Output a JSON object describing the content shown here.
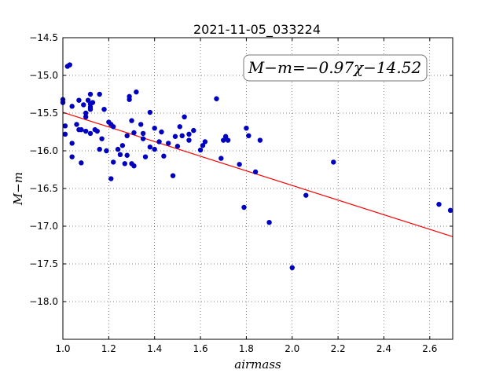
{
  "chart_data": {
    "type": "scatter",
    "title": "2021-11-05_033224",
    "xlabel": "airmass",
    "ylabel": "M−m",
    "xlim": [
      1.0,
      2.7
    ],
    "ylim": [
      -18.5,
      -14.5
    ],
    "y_inverted": true,
    "grid": true,
    "x_ticks": [
      "1.0",
      "1.2",
      "1.4",
      "1.6",
      "1.8",
      "2.0",
      "2.2",
      "2.4",
      "2.6"
    ],
    "y_ticks": [
      "−14.5",
      "−15.0",
      "−15.5",
      "−16.0",
      "−16.5",
      "−17.0",
      "−17.5",
      "−18.0"
    ],
    "annotation": "M−m=−0.97χ−14.52",
    "fit": {
      "slope": -0.97,
      "intercept": -14.52,
      "color": "#ff0000"
    },
    "point_color": "#0000bf",
    "points": [
      [
        1.0,
        -15.32
      ],
      [
        1.0,
        -15.36
      ],
      [
        1.01,
        -15.78
      ],
      [
        1.01,
        -15.67
      ],
      [
        1.02,
        -14.88
      ],
      [
        1.03,
        -14.86
      ],
      [
        1.04,
        -15.41
      ],
      [
        1.04,
        -15.9
      ],
      [
        1.04,
        -16.08
      ],
      [
        1.06,
        -15.65
      ],
      [
        1.07,
        -15.72
      ],
      [
        1.07,
        -15.33
      ],
      [
        1.08,
        -15.72
      ],
      [
        1.08,
        -16.16
      ],
      [
        1.09,
        -15.39
      ],
      [
        1.1,
        -15.5
      ],
      [
        1.1,
        -15.55
      ],
      [
        1.1,
        -15.74
      ],
      [
        1.11,
        -15.33
      ],
      [
        1.12,
        -15.38
      ],
      [
        1.12,
        -15.42
      ],
      [
        1.12,
        -15.45
      ],
      [
        1.12,
        -15.25
      ],
      [
        1.12,
        -15.77
      ],
      [
        1.13,
        -15.36
      ],
      [
        1.14,
        -15.72
      ],
      [
        1.15,
        -15.74
      ],
      [
        1.16,
        -15.98
      ],
      [
        1.16,
        -15.25
      ],
      [
        1.17,
        -15.84
      ],
      [
        1.18,
        -15.45
      ],
      [
        1.19,
        -16.0
      ],
      [
        1.2,
        -15.62
      ],
      [
        1.21,
        -15.65
      ],
      [
        1.21,
        -16.37
      ],
      [
        1.22,
        -16.15
      ],
      [
        1.22,
        -15.68
      ],
      [
        1.24,
        -15.98
      ],
      [
        1.25,
        -16.05
      ],
      [
        1.26,
        -15.93
      ],
      [
        1.27,
        -16.17
      ],
      [
        1.28,
        -16.06
      ],
      [
        1.28,
        -15.8
      ],
      [
        1.29,
        -15.32
      ],
      [
        1.29,
        -15.28
      ],
      [
        1.3,
        -16.17
      ],
      [
        1.3,
        -15.6
      ],
      [
        1.31,
        -15.76
      ],
      [
        1.31,
        -16.2
      ],
      [
        1.32,
        -15.22
      ],
      [
        1.34,
        -15.65
      ],
      [
        1.35,
        -15.84
      ],
      [
        1.35,
        -15.77
      ],
      [
        1.36,
        -16.08
      ],
      [
        1.38,
        -15.49
      ],
      [
        1.38,
        -15.95
      ],
      [
        1.4,
        -15.7
      ],
      [
        1.4,
        -15.98
      ],
      [
        1.42,
        -15.88
      ],
      [
        1.43,
        -15.75
      ],
      [
        1.44,
        -16.07
      ],
      [
        1.46,
        -15.9
      ],
      [
        1.48,
        -16.33
      ],
      [
        1.49,
        -15.81
      ],
      [
        1.5,
        -15.94
      ],
      [
        1.51,
        -15.68
      ],
      [
        1.52,
        -15.8
      ],
      [
        1.53,
        -15.55
      ],
      [
        1.55,
        -15.86
      ],
      [
        1.55,
        -15.78
      ],
      [
        1.57,
        -15.73
      ],
      [
        1.6,
        -15.99
      ],
      [
        1.61,
        -15.93
      ],
      [
        1.62,
        -15.88
      ],
      [
        1.67,
        -15.31
      ],
      [
        1.69,
        -16.1
      ],
      [
        1.7,
        -15.86
      ],
      [
        1.71,
        -15.81
      ],
      [
        1.72,
        -15.86
      ],
      [
        1.77,
        -16.18
      ],
      [
        1.79,
        -16.75
      ],
      [
        1.8,
        -15.7
      ],
      [
        1.81,
        -15.8
      ],
      [
        1.84,
        -16.28
      ],
      [
        1.86,
        -15.86
      ],
      [
        1.9,
        -16.95
      ],
      [
        2.0,
        -17.55
      ],
      [
        2.06,
        -16.59
      ],
      [
        2.18,
        -16.15
      ],
      [
        2.64,
        -16.71
      ],
      [
        2.69,
        -16.79
      ]
    ]
  }
}
